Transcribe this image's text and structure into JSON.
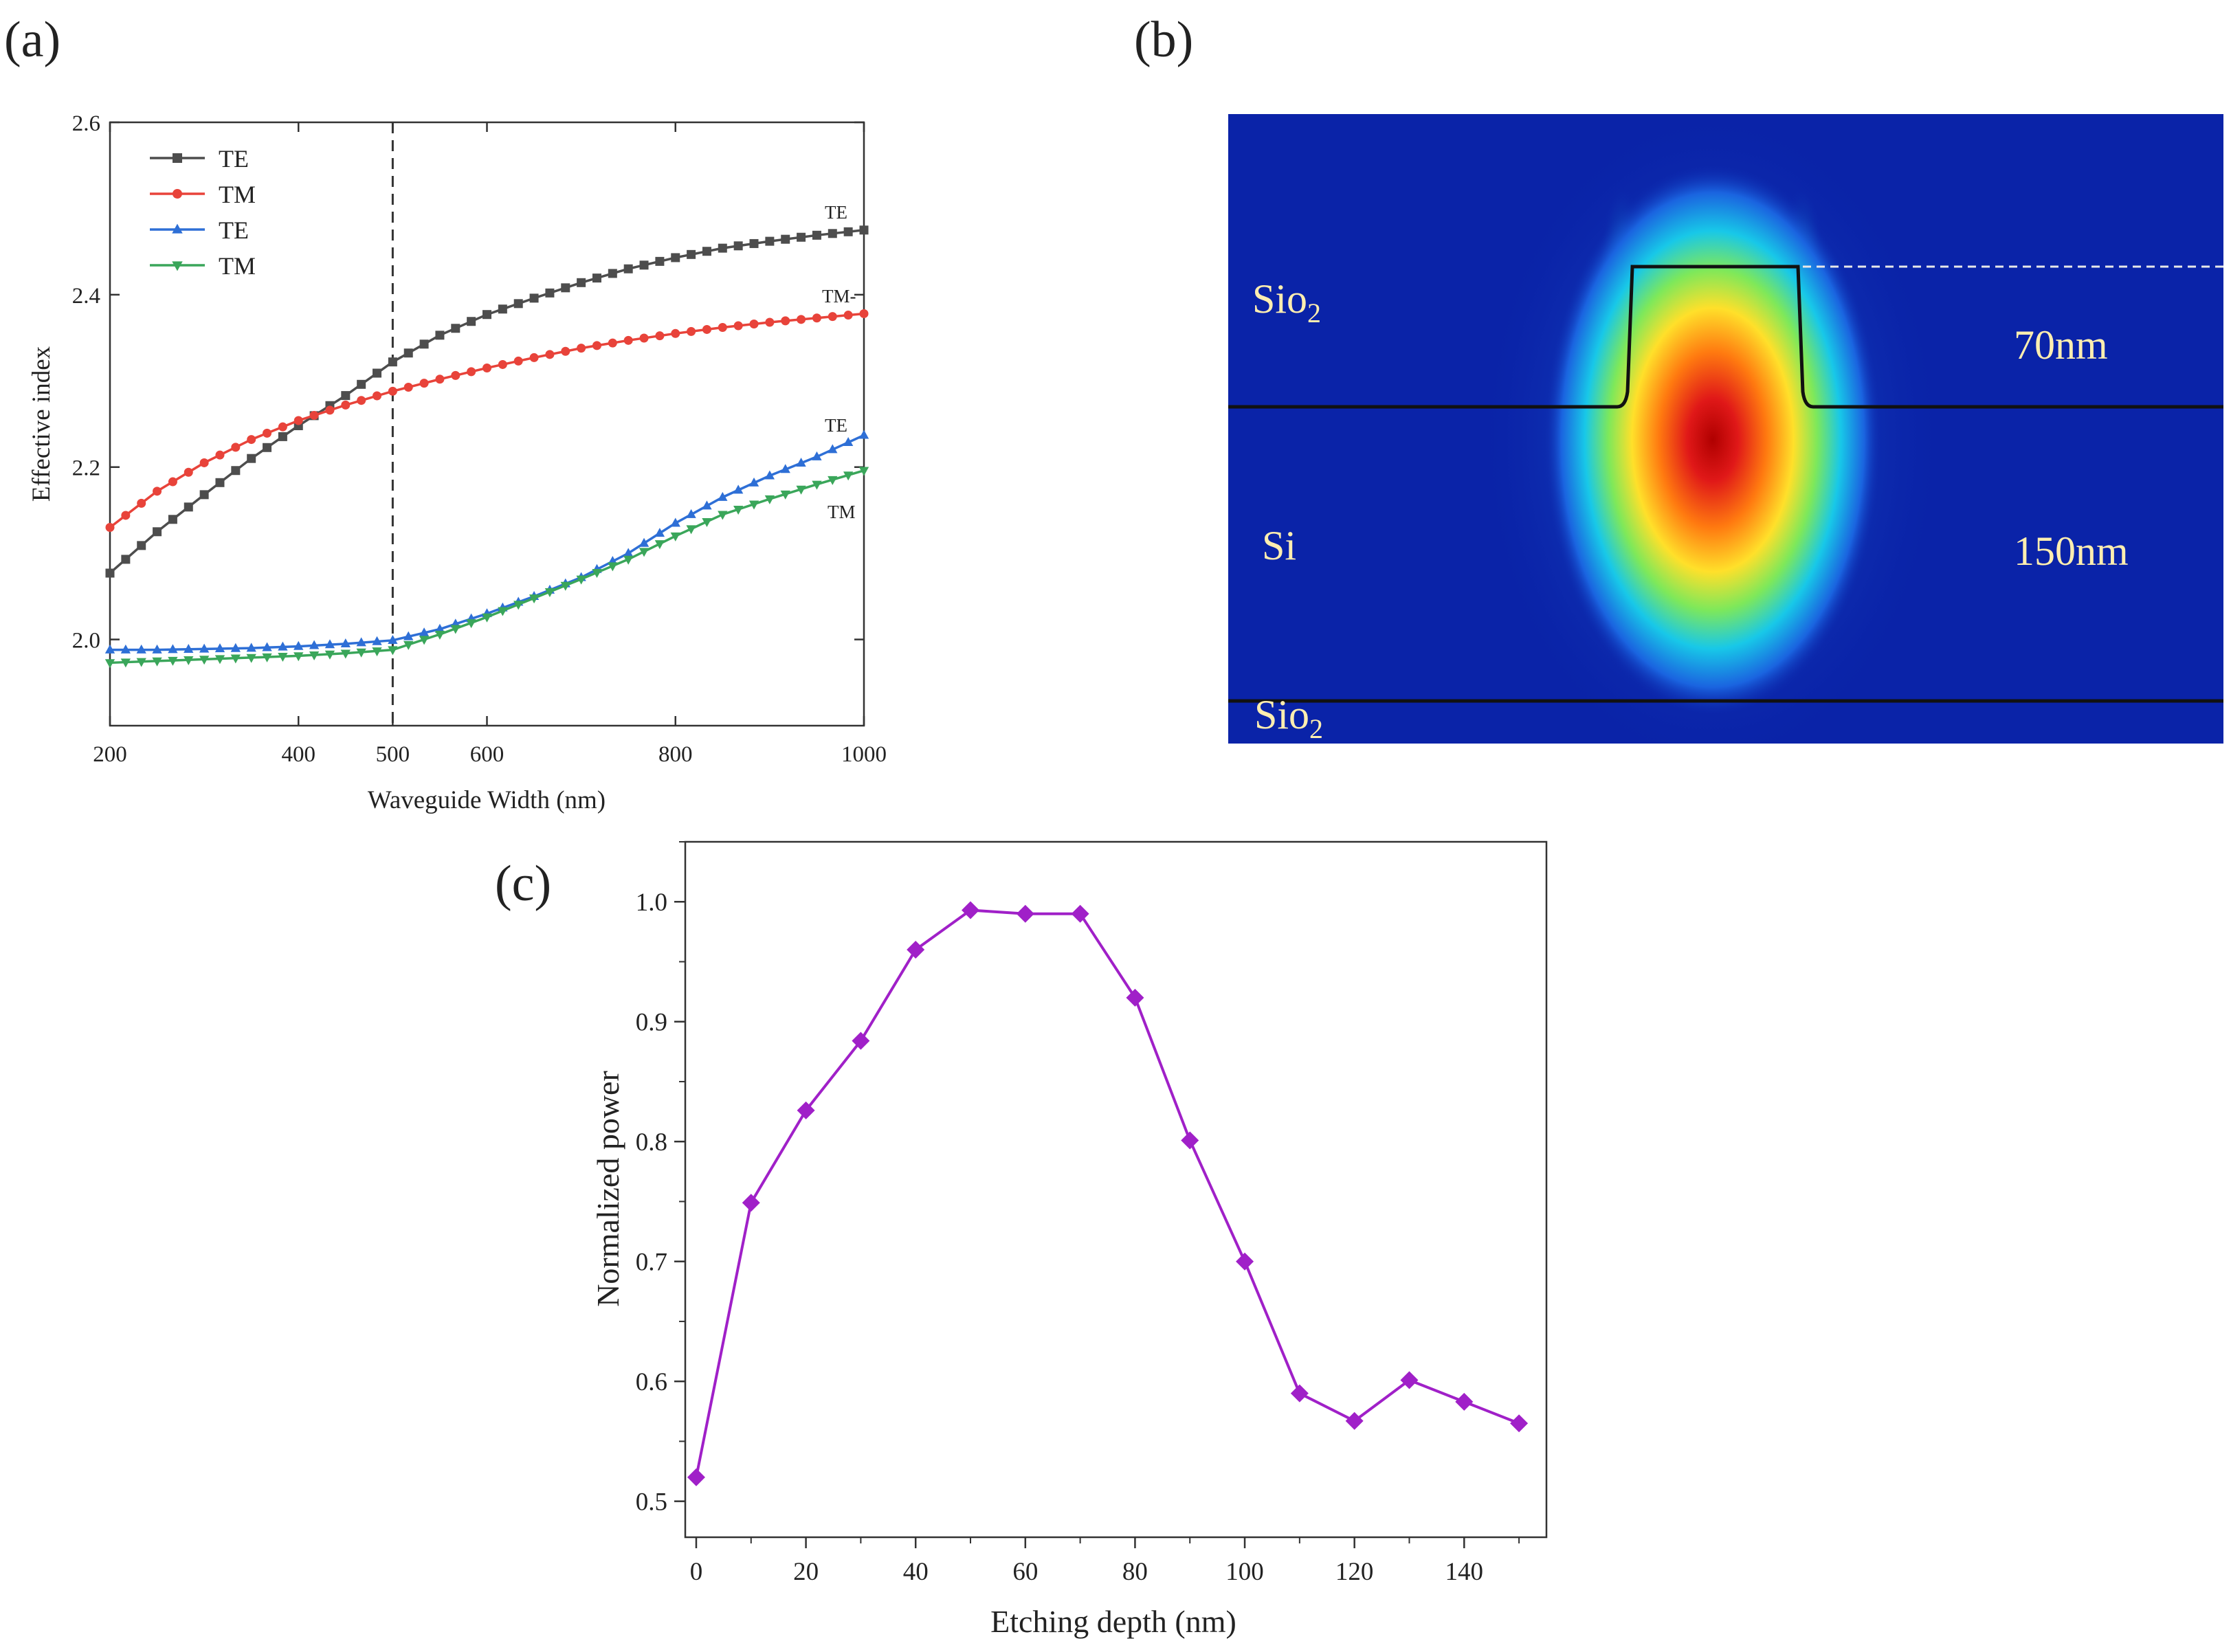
{
  "panels": {
    "a": {
      "label": "(a)"
    },
    "b": {
      "label": "(b)"
    },
    "c": {
      "label": "(c)"
    }
  },
  "chart_data": [
    {
      "id": "a",
      "type": "line",
      "xlabel": "Waveguide Width (nm)",
      "ylabel": "Effective index",
      "xlim": [
        200,
        1000
      ],
      "ylim": [
        1.9,
        2.6
      ],
      "xticks": [
        "200",
        "400",
        "500",
        "600",
        "800",
        "1000"
      ],
      "yticks": [
        "2.0",
        "2.2",
        "2.4",
        "2.6"
      ],
      "vline": 500,
      "legend": [
        "TE",
        "TM",
        "TE",
        "TM"
      ],
      "curve_labels": [
        "TE",
        "TM-",
        "TE",
        "TM"
      ],
      "series": [
        {
          "name": "TE",
          "color": "#4d4d4d",
          "marker": "square",
          "x": [
            200,
            250,
            300,
            350,
            400,
            450,
            500,
            550,
            600,
            650,
            700,
            750,
            800,
            850,
            900,
            950,
            1000
          ],
          "y": [
            2.077,
            2.125,
            2.168,
            2.21,
            2.248,
            2.283,
            2.322,
            2.353,
            2.377,
            2.396,
            2.414,
            2.43,
            2.443,
            2.454,
            2.462,
            2.469,
            2.475
          ]
        },
        {
          "name": "TM",
          "color": "#e8433a",
          "marker": "circle",
          "x": [
            200,
            250,
            300,
            350,
            400,
            450,
            500,
            550,
            600,
            650,
            700,
            750,
            800,
            850,
            900,
            950,
            1000
          ],
          "y": [
            2.13,
            2.172,
            2.205,
            2.232,
            2.254,
            2.272,
            2.288,
            2.302,
            2.315,
            2.327,
            2.338,
            2.347,
            2.355,
            2.362,
            2.368,
            2.373,
            2.378
          ]
        },
        {
          "name": "TE",
          "color": "#2e6fd6",
          "marker": "triangle-up",
          "x": [
            200,
            250,
            300,
            350,
            400,
            450,
            500,
            550,
            600,
            650,
            700,
            750,
            800,
            850,
            900,
            950,
            1000
          ],
          "y": [
            1.988,
            1.988,
            1.989,
            1.99,
            1.992,
            1.995,
            1.999,
            2.012,
            2.03,
            2.05,
            2.072,
            2.1,
            2.135,
            2.165,
            2.19,
            2.212,
            2.237
          ]
        },
        {
          "name": "TM",
          "color": "#3aa65a",
          "marker": "triangle-down",
          "x": [
            200,
            250,
            300,
            350,
            400,
            450,
            500,
            550,
            600,
            650,
            700,
            750,
            800,
            850,
            900,
            950,
            1000
          ],
          "y": [
            1.973,
            1.975,
            1.977,
            1.979,
            1.981,
            1.984,
            1.988,
            2.006,
            2.026,
            2.048,
            2.07,
            2.093,
            2.12,
            2.145,
            2.163,
            2.18,
            2.196
          ]
        }
      ]
    },
    {
      "id": "b",
      "type": "heatmap",
      "labels": {
        "top_oxide": "Sio",
        "top_oxide_sub": "2",
        "core": "Si",
        "bottom_oxide": "Sio",
        "bottom_oxide_sub": "2",
        "etch_depth": "70nm",
        "core_thickness": "150nm"
      }
    },
    {
      "id": "c",
      "type": "line",
      "xlabel": "Etching depth (nm)",
      "ylabel": "Normalized power",
      "xlim": [
        -2,
        155
      ],
      "ylim": [
        0.47,
        1.05
      ],
      "xticks": [
        0,
        20,
        40,
        60,
        80,
        100,
        120,
        140
      ],
      "yticks": [
        0.5,
        0.6,
        0.7,
        0.8,
        0.9,
        1.0
      ],
      "series": [
        {
          "name": "Normalized power",
          "color": "#a020c8",
          "marker": "diamond",
          "x": [
            0,
            10,
            20,
            30,
            40,
            50,
            60,
            70,
            80,
            90,
            100,
            110,
            120,
            130,
            140,
            150
          ],
          "y": [
            0.52,
            0.749,
            0.826,
            0.884,
            0.96,
            0.993,
            0.99,
            0.99,
            0.92,
            0.801,
            0.7,
            0.59,
            0.567,
            0.601,
            0.583,
            0.565
          ]
        }
      ]
    }
  ]
}
